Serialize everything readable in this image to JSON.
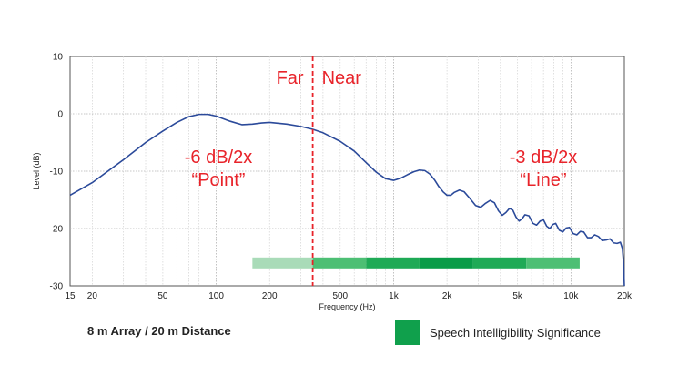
{
  "chart_data": {
    "type": "line",
    "xlabel": "Frequency (Hz)",
    "ylabel": "Level (dB)",
    "x_scale": "log",
    "xlim": [
      15,
      20000
    ],
    "ylim": [
      -30,
      10
    ],
    "grid": true,
    "x_tick_labels": [
      "15",
      "20",
      "50",
      "100",
      "200",
      "500",
      "1k",
      "2k",
      "5k",
      "10k",
      "20k"
    ],
    "x_tick_values": [
      15,
      20,
      50,
      100,
      200,
      500,
      1000,
      2000,
      5000,
      10000,
      20000
    ],
    "y_ticks": [
      10,
      0,
      -10,
      -20,
      -30
    ],
    "series": [
      {
        "color": "#2b4a9a",
        "points": [
          [
            15,
            -14.2
          ],
          [
            20,
            -12.0
          ],
          [
            30,
            -8.0
          ],
          [
            40,
            -5.0
          ],
          [
            50,
            -3.0
          ],
          [
            60,
            -1.5
          ],
          [
            70,
            -0.5
          ],
          [
            80,
            -0.1
          ],
          [
            90,
            -0.1
          ],
          [
            100,
            -0.4
          ],
          [
            120,
            -1.3
          ],
          [
            140,
            -1.9
          ],
          [
            160,
            -1.8
          ],
          [
            180,
            -1.6
          ],
          [
            200,
            -1.5
          ],
          [
            250,
            -1.8
          ],
          [
            300,
            -2.2
          ],
          [
            350,
            -2.7
          ],
          [
            400,
            -3.3
          ],
          [
            500,
            -4.8
          ],
          [
            600,
            -6.5
          ],
          [
            700,
            -8.5
          ],
          [
            800,
            -10.2
          ],
          [
            900,
            -11.3
          ],
          [
            1000,
            -11.6
          ],
          [
            1100,
            -11.2
          ],
          [
            1200,
            -10.6
          ],
          [
            1300,
            -10.1
          ],
          [
            1400,
            -9.8
          ],
          [
            1500,
            -9.9
          ],
          [
            1600,
            -10.5
          ],
          [
            1700,
            -11.5
          ],
          [
            1800,
            -12.7
          ],
          [
            1900,
            -13.6
          ],
          [
            2000,
            -14.2
          ],
          [
            2100,
            -14.2
          ],
          [
            2200,
            -13.7
          ],
          [
            2350,
            -13.3
          ],
          [
            2500,
            -13.6
          ],
          [
            2700,
            -14.8
          ],
          [
            2900,
            -16.0
          ],
          [
            3100,
            -16.3
          ],
          [
            3300,
            -15.6
          ],
          [
            3500,
            -15.1
          ],
          [
            3700,
            -15.5
          ],
          [
            3900,
            -16.9
          ],
          [
            4100,
            -17.7
          ],
          [
            4300,
            -17.2
          ],
          [
            4500,
            -16.5
          ],
          [
            4700,
            -16.8
          ],
          [
            4900,
            -18.0
          ],
          [
            5100,
            -18.7
          ],
          [
            5300,
            -18.3
          ],
          [
            5500,
            -17.6
          ],
          [
            5800,
            -17.8
          ],
          [
            6100,
            -19.1
          ],
          [
            6400,
            -19.4
          ],
          [
            6700,
            -18.7
          ],
          [
            7000,
            -18.5
          ],
          [
            7300,
            -19.6
          ],
          [
            7600,
            -20.0
          ],
          [
            7900,
            -19.3
          ],
          [
            8200,
            -19.1
          ],
          [
            8600,
            -20.3
          ],
          [
            9000,
            -20.6
          ],
          [
            9400,
            -19.9
          ],
          [
            9800,
            -19.8
          ],
          [
            10300,
            -20.9
          ],
          [
            10800,
            -21.1
          ],
          [
            11300,
            -20.5
          ],
          [
            11800,
            -20.6
          ],
          [
            12400,
            -21.6
          ],
          [
            13000,
            -21.6
          ],
          [
            13600,
            -21.1
          ],
          [
            14300,
            -21.4
          ],
          [
            15000,
            -22.1
          ],
          [
            15800,
            -22.0
          ],
          [
            16600,
            -21.8
          ],
          [
            17400,
            -22.5
          ],
          [
            18200,
            -22.6
          ],
          [
            19000,
            -22.4
          ],
          [
            19500,
            -23.5
          ],
          [
            19800,
            -26.0
          ],
          [
            20000,
            -30.0
          ]
        ]
      }
    ],
    "vline": {
      "x": 350,
      "color": "#e8232a"
    },
    "annotations": {
      "far": "Far",
      "near": "Near",
      "left_rate": "-6 dB/2x",
      "left_type": "“Point”",
      "right_rate": "-3 dB/2x",
      "right_type": "“Line”"
    },
    "significance_band": {
      "y": -26,
      "segments": [
        {
          "x0": 160,
          "x1": 350,
          "color": "#a9dbb8"
        },
        {
          "x0": 350,
          "x1": 700,
          "color": "#4dbf74"
        },
        {
          "x0": 700,
          "x1": 1400,
          "color": "#1faa56"
        },
        {
          "x0": 1400,
          "x1": 2800,
          "color": "#0a9c48"
        },
        {
          "x0": 2800,
          "x1": 5600,
          "color": "#1faa56"
        },
        {
          "x0": 5600,
          "x1": 11200,
          "color": "#4dbf74"
        }
      ]
    }
  },
  "footer": {
    "caption": "8 m Array / 20 m Distance",
    "legend_label": "Speech Intelligibility Significance",
    "legend_color": "#10a04c"
  }
}
